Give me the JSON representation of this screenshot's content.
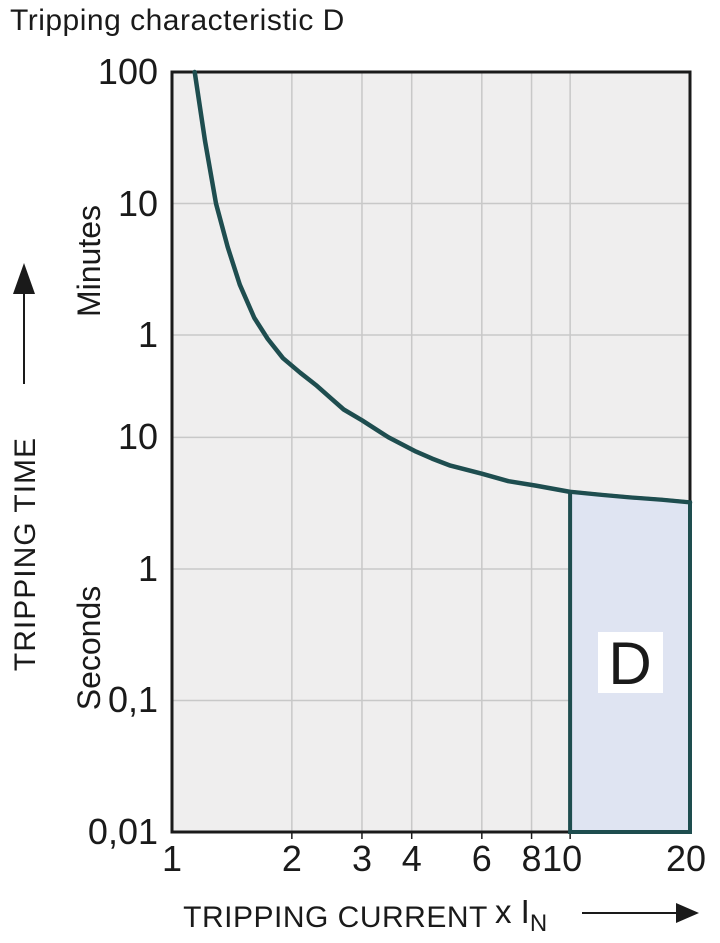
{
  "chart_data": {
    "type": "line",
    "title": "Tripping characteristic D",
    "x_axis": {
      "title": "TRIPPING CURRENT",
      "unit_prefix": "x I",
      "unit_subscript": "N",
      "scale": "log",
      "min": 1,
      "max": 20,
      "tick_labels": [
        "1",
        "2",
        "3",
        "4",
        "6",
        "8",
        "10",
        "20"
      ],
      "tick_values": [
        1,
        2,
        3,
        4,
        6,
        8,
        10,
        20
      ],
      "gridline_values": [
        2,
        3,
        4,
        6,
        8,
        10
      ]
    },
    "y_axis": {
      "title": "TRIPPING TIME",
      "scale": "log",
      "min_seconds": 0.01,
      "max_seconds": 6000,
      "unit_sections": [
        {
          "label": "Minutes"
        },
        {
          "label": "Seconds"
        }
      ],
      "ticks": [
        {
          "label": "100",
          "seconds": 6000
        },
        {
          "label": "10",
          "seconds": 600
        },
        {
          "label": "1",
          "seconds": 60
        },
        {
          "label": "10",
          "seconds": 10
        },
        {
          "label": "1",
          "seconds": 1
        },
        {
          "label": "0,1",
          "seconds": 0.1
        },
        {
          "label": "0,01",
          "seconds": 0.01
        }
      ],
      "gridline_seconds": [
        600,
        60,
        10,
        1,
        0.1
      ]
    },
    "series": [
      {
        "name": "tripping-time-curve",
        "color": "#1e4d4f",
        "points_current_vs_seconds": [
          [
            1.14,
            6000
          ],
          [
            1.21,
            1800
          ],
          [
            1.29,
            600
          ],
          [
            1.38,
            280
          ],
          [
            1.48,
            145
          ],
          [
            1.61,
            81
          ],
          [
            1.74,
            56
          ],
          [
            1.9,
            40
          ],
          [
            2.1,
            31
          ],
          [
            2.3,
            25
          ],
          [
            2.5,
            20
          ],
          [
            2.7,
            16.3
          ],
          [
            3,
            13.5
          ],
          [
            3.5,
            10
          ],
          [
            4.1,
            7.8
          ],
          [
            4.5,
            6.9
          ],
          [
            5,
            6.1
          ],
          [
            6,
            5.3
          ],
          [
            7,
            4.65
          ],
          [
            8.2,
            4.3
          ],
          [
            10,
            3.85
          ],
          [
            12,
            3.65
          ],
          [
            14,
            3.5
          ],
          [
            17,
            3.35
          ],
          [
            20,
            3.2
          ]
        ]
      }
    ],
    "region": {
      "label": "D",
      "x_from": 10,
      "x_to": 20,
      "bottom_seconds": 0.01
    }
  },
  "colors": {
    "background": "#ffffff",
    "plot_background": "#efeeee",
    "gridline": "#c8c8c8",
    "axis_border": "#1a1a1a",
    "text": "#1a1a1a",
    "curve": "#1e4d4f",
    "region_fill": "#dfe4f2",
    "region_border": "#1e4d4f",
    "region_label_background": "#ffffff"
  }
}
